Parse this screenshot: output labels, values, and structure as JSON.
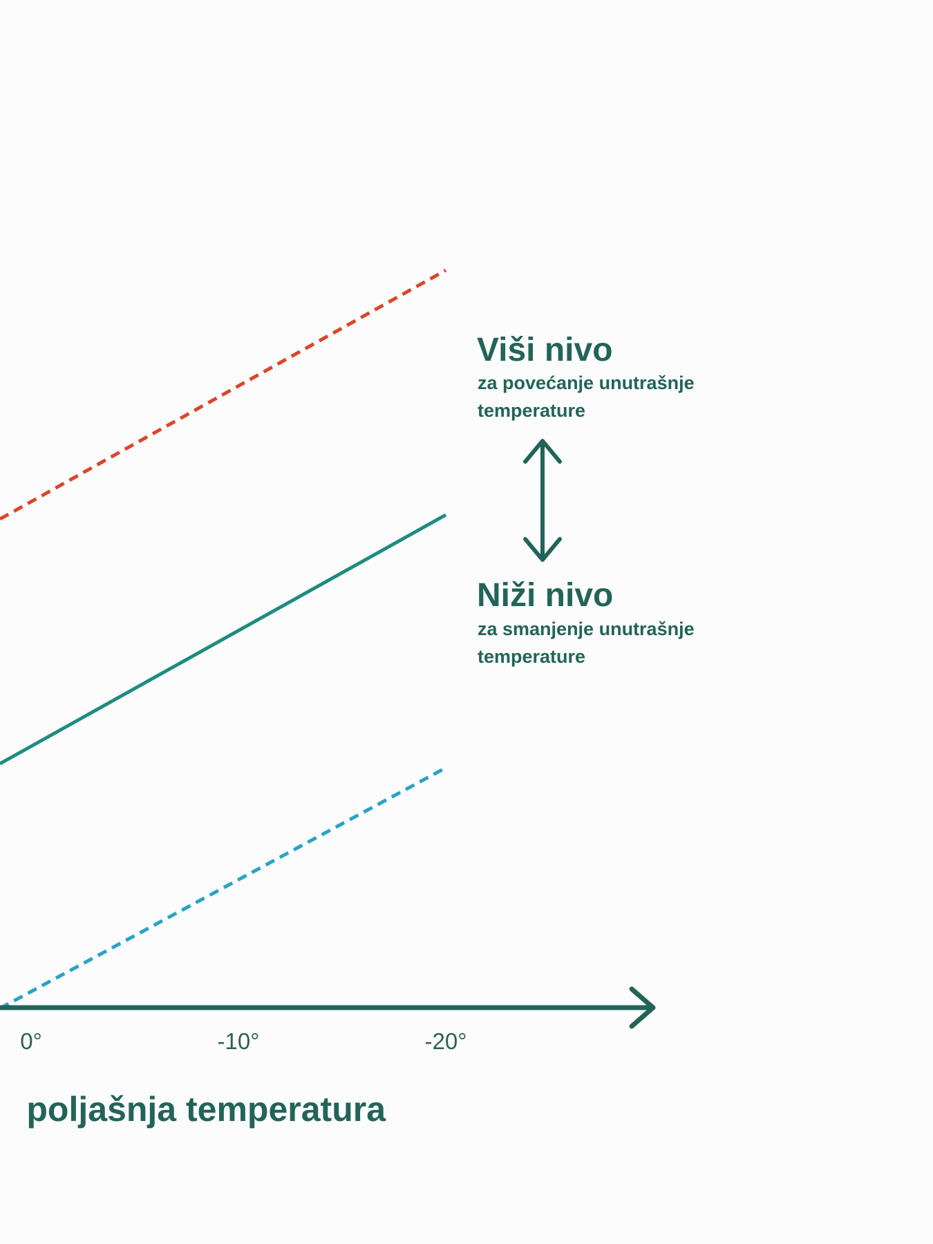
{
  "chart_data": {
    "type": "line",
    "xlabel": "poljašnja temperatura",
    "ylabel": "",
    "x_ticks": [
      {
        "value": 0,
        "label": "0°"
      },
      {
        "value": -10,
        "label": "-10°"
      },
      {
        "value": -20,
        "label": "-20°"
      }
    ],
    "x_direction": "decreasing",
    "y_ticks": false,
    "grid": false,
    "series": [
      {
        "key": "high",
        "style": "dashed",
        "color": "#d9472b",
        "x": [
          1.5,
          -20
        ],
        "y": [
          6.8,
          18.8
        ]
      },
      {
        "key": "mid",
        "style": "solid",
        "color": "#1f8c7e",
        "x": [
          1.5,
          -20
        ],
        "y": [
          -5.0,
          7.0
        ]
      },
      {
        "key": "low",
        "style": "dashed",
        "color": "#29a3c4",
        "x": [
          1.5,
          -20
        ],
        "y": [
          -16.8,
          -5.2
        ]
      }
    ],
    "annotations": [
      {
        "key": "upper",
        "title": "Viši nivo",
        "subtitle_line1": "za povećanje unutrašnje",
        "subtitle_line2": "temperature"
      },
      {
        "key": "lower",
        "title": "Niži nivo",
        "subtitle_line1": "za smanjenje unutrašnje",
        "subtitle_line2": "temperature"
      }
    ],
    "colors": {
      "axis": "#236459",
      "text": "#236459"
    }
  }
}
